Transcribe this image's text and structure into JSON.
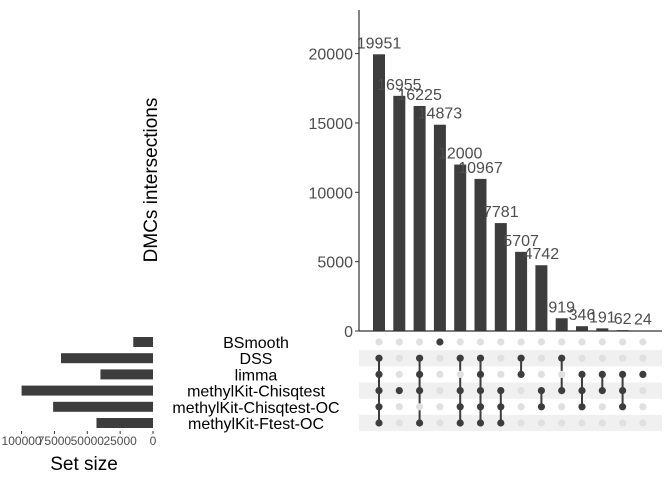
{
  "chart_data": {
    "type": "upset",
    "ylabel": "DMCs intersections",
    "xlabel_sets": "Set size",
    "intersections": {
      "yticks": [
        0,
        5000,
        10000,
        15000,
        20000
      ],
      "ylim": [
        0,
        23000
      ],
      "values": [
        19951,
        16955,
        16225,
        14873,
        12000,
        10967,
        7781,
        5707,
        4742,
        919,
        346,
        191,
        62,
        24
      ],
      "labels": [
        "19951",
        "16955",
        "16225",
        "14873",
        "12000",
        "10967",
        "7781",
        "5707",
        "4742",
        "919",
        "346",
        "191",
        "62",
        "24"
      ]
    },
    "sets": {
      "names": [
        "BSmooth",
        "DSS",
        "limma",
        "methylKit-Chisqtest",
        "methylKit-Chisqtest-OC",
        "methylKit-Ftest-OC"
      ],
      "sizes": [
        15000,
        70000,
        40000,
        100000,
        76000,
        43000
      ],
      "xticks": [
        100000,
        75000,
        50000,
        25000,
        0
      ],
      "xtick_labels": [
        "100000",
        "75000",
        "50000",
        "25000",
        "0"
      ],
      "xlim_max": 105000
    },
    "matrix": [
      [
        1,
        2,
        3,
        4,
        5
      ],
      [
        3
      ],
      [
        1,
        2,
        3,
        5
      ],
      [
        0
      ],
      [
        1,
        3,
        4,
        5
      ],
      [
        1,
        2,
        3,
        4,
        5
      ],
      [
        3,
        4,
        5
      ],
      [
        1,
        2
      ],
      [
        3,
        4
      ],
      [
        1,
        3
      ],
      [
        2,
        3,
        4
      ],
      [
        2,
        3
      ],
      [
        2,
        3,
        4
      ],
      [
        2
      ]
    ],
    "colors": {
      "bar": "#3d3d3d",
      "dot_active": "#3d3d3d",
      "dot_inactive": "#e0e0e0",
      "stripe": "#f0f0f0",
      "axis": "#333333",
      "tick_text": "#4d4d4d",
      "label_text": "#000000"
    }
  }
}
